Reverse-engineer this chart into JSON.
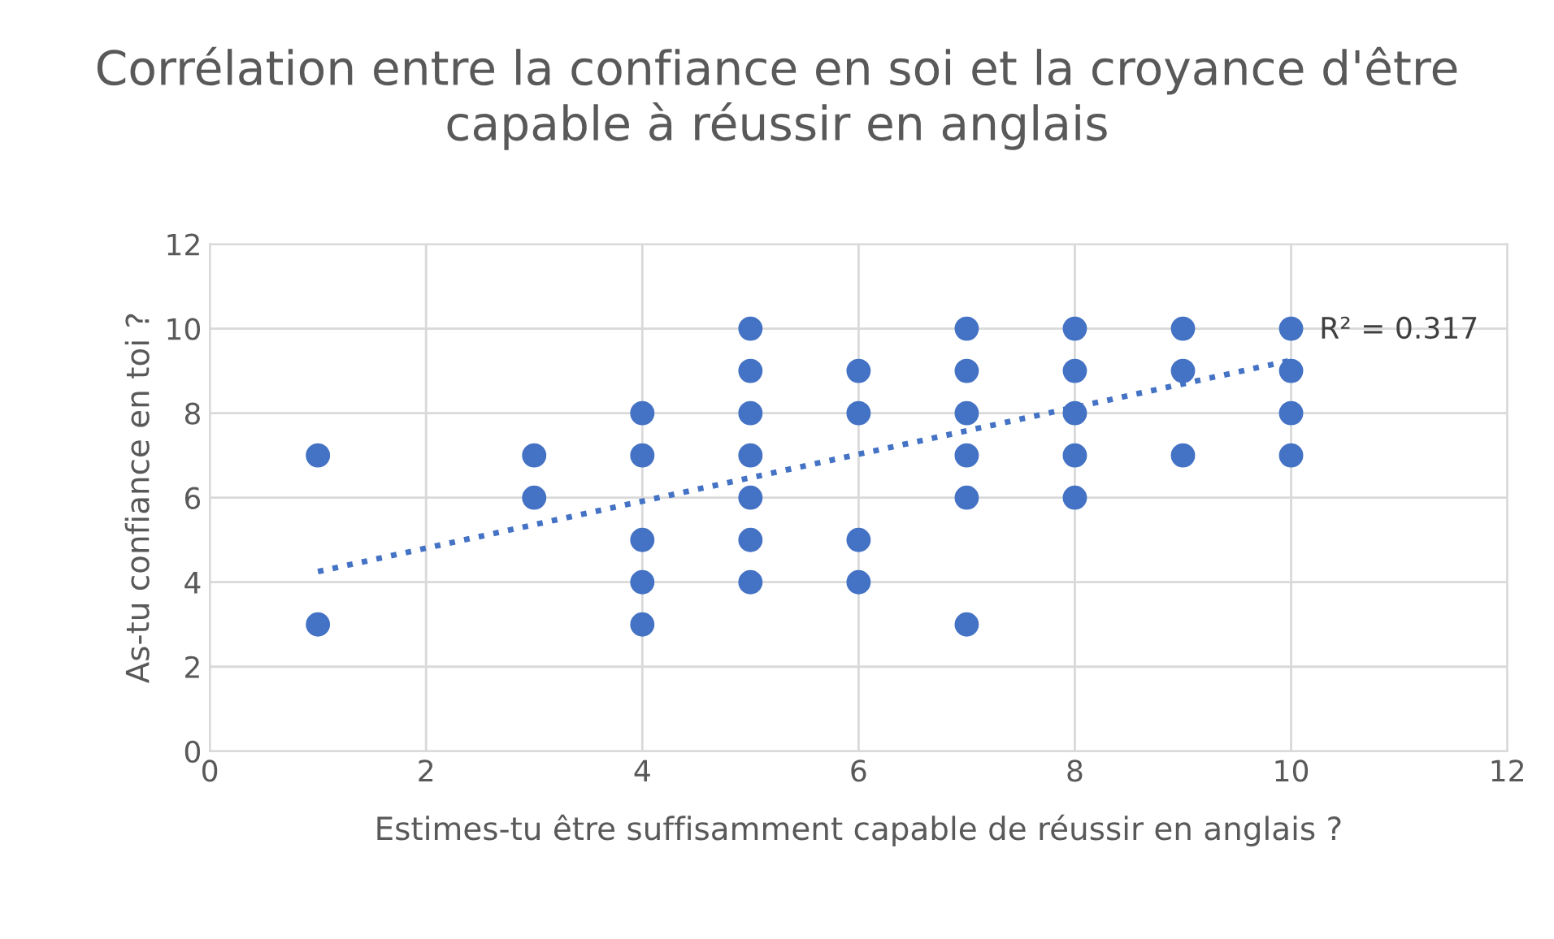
{
  "chart_data": {
    "type": "scatter",
    "title": "Corrélation entre la confiance en soi et la croyance d'être capable à réussir en anglais",
    "xlabel": "Estimes-tu être suffisamment capable de réussir en anglais ?",
    "ylabel": "As-tu confiance en toi ?",
    "series": [
      {
        "color": "#4472c4",
        "x": [
          1,
          1,
          3,
          3,
          4,
          4,
          4,
          4,
          4,
          5,
          5,
          5,
          5,
          5,
          5,
          5,
          6,
          6,
          6,
          6,
          7,
          7,
          7,
          7,
          7,
          7,
          8,
          8,
          8,
          8,
          8,
          9,
          9,
          9,
          10,
          10,
          10,
          10
        ],
        "values": [
          7,
          3,
          7,
          6,
          8,
          7,
          5,
          4,
          3,
          10,
          9,
          8,
          7,
          6,
          5,
          4,
          9,
          8,
          5,
          4,
          10,
          9,
          8,
          7,
          6,
          3,
          10,
          9,
          8,
          7,
          6,
          10,
          9,
          7,
          10,
          9,
          8,
          7
        ]
      },
      {
        "type": "line",
        "color": "#4472c4",
        "line_style": "dotted",
        "marker": "none",
        "x": [
          1,
          10
        ],
        "values": [
          4.25,
          9.25
        ]
      }
    ],
    "annotations": [
      "R² = 0.317"
    ],
    "marker": "circle",
    "grid": true,
    "legend": false,
    "xlim": [
      0,
      12
    ],
    "xticks": [
      0,
      2,
      4,
      6,
      8,
      10,
      12
    ],
    "ylim": [
      0,
      12
    ],
    "yticks": [
      0,
      2,
      4,
      6,
      8,
      10,
      12
    ]
  }
}
